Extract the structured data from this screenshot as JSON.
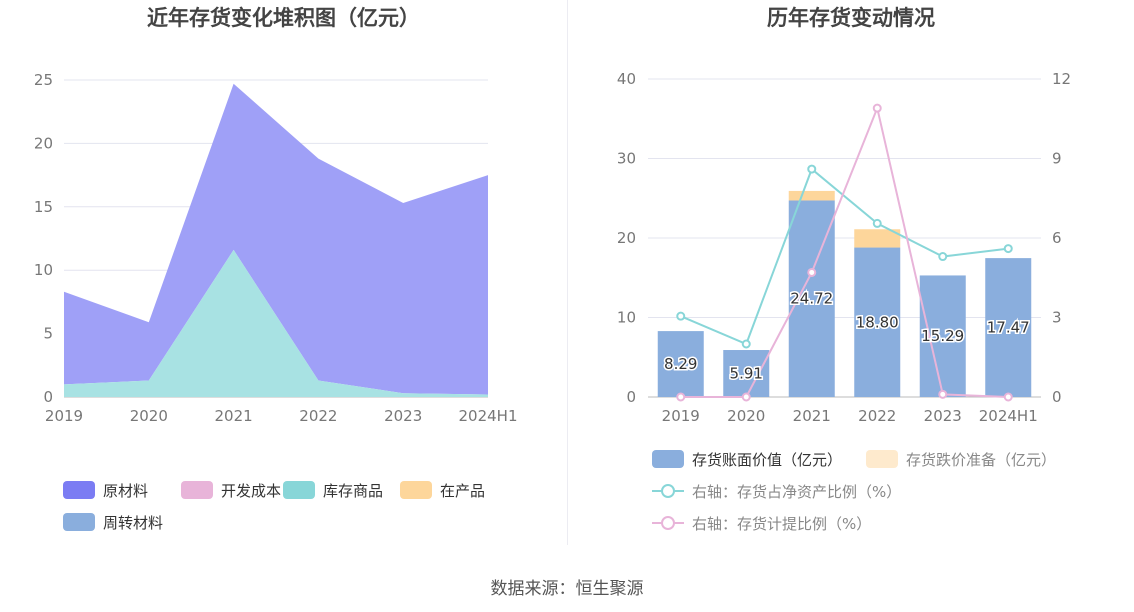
{
  "source": "数据来源：恒生聚源",
  "chart_data": [
    {
      "type": "area",
      "title": "近年存货变化堆积图（亿元）",
      "categories": [
        "2019",
        "2020",
        "2021",
        "2022",
        "2023",
        "2024H1"
      ],
      "stacked": true,
      "ylim": [
        0,
        25
      ],
      "yticks": [
        0,
        5,
        10,
        15,
        20,
        25
      ],
      "grid": true,
      "legend_position": "bottom",
      "series": [
        {
          "name": "原材料",
          "color": "#7b7cf3",
          "values": [
            7.3,
            4.6,
            13.1,
            17.5,
            15.0,
            17.3
          ]
        },
        {
          "name": "开发成本",
          "color": "#e8b4d9",
          "values": [
            0,
            0,
            0,
            0,
            0,
            0
          ]
        },
        {
          "name": "库存商品",
          "color": "#88d6d8",
          "values": [
            1.0,
            1.3,
            11.6,
            1.3,
            0.3,
            0.2
          ]
        },
        {
          "name": "在产品",
          "color": "#fdd69b",
          "values": [
            0,
            0,
            0,
            0,
            0,
            0
          ]
        },
        {
          "name": "周转材料",
          "color": "#8aaedd",
          "values": [
            0,
            0,
            0,
            0,
            0,
            0
          ]
        }
      ]
    },
    {
      "type": "bar",
      "title": "历年存货变动情况",
      "categories": [
        "2019",
        "2020",
        "2021",
        "2022",
        "2023",
        "2024H1"
      ],
      "ylim": [
        0,
        40
      ],
      "yticks": [
        0,
        10,
        20,
        30,
        40
      ],
      "y2lim": [
        0,
        12
      ],
      "y2ticks": [
        0,
        3,
        6,
        9,
        12
      ],
      "grid": true,
      "legend_position": "bottom",
      "series": [
        {
          "name": "存货账面价值（亿元）",
          "kind": "bar",
          "color": "#8aaedd",
          "values": [
            8.29,
            5.91,
            24.72,
            18.8,
            15.29,
            17.47
          ],
          "labels": [
            "8.29",
            "5.91",
            "24.72",
            "18.80",
            "15.29",
            "17.47"
          ]
        },
        {
          "name": "存货跌价准备（亿元）",
          "kind": "bar",
          "color": "#fdd69b",
          "values": [
            0,
            0,
            1.2,
            2.3,
            0,
            0
          ]
        },
        {
          "name": "右轴：存货占净资产比例（%）",
          "kind": "line",
          "axis": "right",
          "color": "#88d6d8",
          "values": [
            3.05,
            2.0,
            8.6,
            6.55,
            5.3,
            5.6
          ]
        },
        {
          "name": "右轴：存货计提比例（%）",
          "kind": "line",
          "axis": "right",
          "color": "#e8b4d9",
          "values": [
            0,
            0,
            4.7,
            10.9,
            0.1,
            0
          ]
        }
      ]
    }
  ]
}
